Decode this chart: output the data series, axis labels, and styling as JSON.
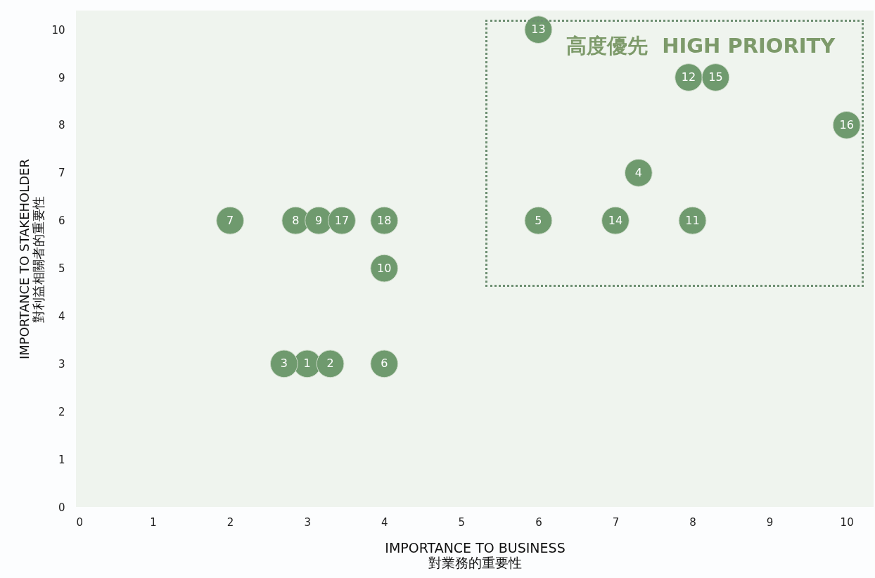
{
  "chart_data": {
    "type": "scatter",
    "xlabel": "IMPORTANCE TO BUSINESS\n對業務的重要性",
    "ylabel": "IMPORTANCE TO STAKEHOLDER\n對利益相關者的重要性",
    "x": [
      3,
      3.3,
      2.7,
      7.3,
      6,
      4,
      2,
      2.85,
      3.15,
      4,
      8,
      7.95,
      6,
      7,
      8.3,
      10,
      3.45,
      4
    ],
    "series": [
      {
        "color": "#6f9a6e",
        "values": [
          3,
          3,
          3,
          7,
          6,
          3,
          6,
          6,
          6,
          5,
          6,
          9,
          10,
          6,
          9,
          8,
          6,
          6
        ]
      }
    ],
    "marker": "circle",
    "xlim": [
      0,
      10.35
    ],
    "ylim": [
      0,
      10.4
    ],
    "xticks": [
      0,
      1,
      2,
      3,
      4,
      5,
      6,
      7,
      8,
      9,
      10
    ],
    "yticks": [
      0,
      1,
      2,
      3,
      4,
      5,
      6,
      7,
      8,
      9,
      10
    ],
    "annotations": [
      {
        "text": "1",
        "x": 3,
        "y": 3
      },
      {
        "text": "2",
        "x": 3.3,
        "y": 3
      },
      {
        "text": "3",
        "x": 2.7,
        "y": 3
      },
      {
        "text": "4",
        "x": 7.3,
        "y": 7
      },
      {
        "text": "5",
        "x": 6,
        "y": 6
      },
      {
        "text": "6",
        "x": 4,
        "y": 3
      },
      {
        "text": "7",
        "x": 2,
        "y": 6
      },
      {
        "text": "8",
        "x": 2.85,
        "y": 6
      },
      {
        "text": "9",
        "x": 3.15,
        "y": 6
      },
      {
        "text": "10",
        "x": 4,
        "y": 5
      },
      {
        "text": "11",
        "x": 8,
        "y": 6
      },
      {
        "text": "12",
        "x": 7.95,
        "y": 9
      },
      {
        "text": "13",
        "x": 6,
        "y": 10
      },
      {
        "text": "14",
        "x": 7,
        "y": 6
      },
      {
        "text": "15",
        "x": 8.3,
        "y": 9
      },
      {
        "text": "16",
        "x": 10,
        "y": 8
      },
      {
        "text": "17",
        "x": 3.45,
        "y": 6
      },
      {
        "text": "18",
        "x": 4,
        "y": 6
      },
      "高度優先  HIGH PRIORITY"
    ]
  }
}
